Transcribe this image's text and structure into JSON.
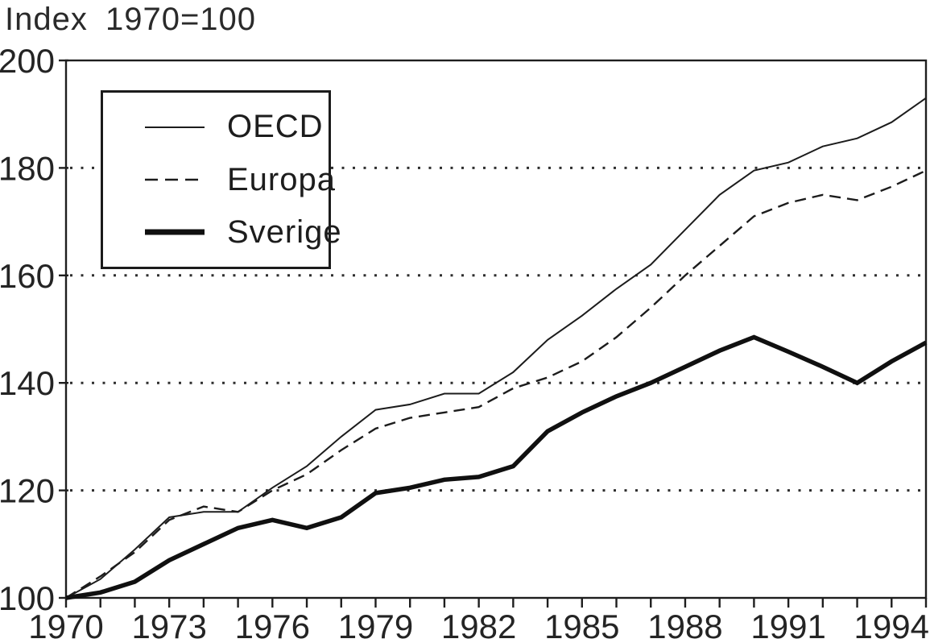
{
  "title": "Index 1970=100",
  "colors": {
    "line": "#1c1c1c",
    "axis": "#1e1e1e",
    "background": "#ffffff",
    "text": "#242424"
  },
  "legend": {
    "position": "upper-left-inside",
    "items": [
      {
        "label": "OECD",
        "style": "solid-thin"
      },
      {
        "label": "Europa",
        "style": "dashed"
      },
      {
        "label": "Sverige",
        "style": "solid-thick"
      }
    ]
  },
  "chart_data": {
    "type": "line",
    "title": "Index 1970=100",
    "xlabel": "",
    "ylabel": "Index 1970=100",
    "xlim": [
      1970,
      1995
    ],
    "ylim": [
      100,
      200
    ],
    "grid": "horizontal dotted",
    "grid_y": [
      120,
      140,
      160,
      180
    ],
    "y_ticks": [
      100,
      120,
      140,
      160,
      180,
      200
    ],
    "x_tick_interval": 1,
    "x_tick_labels": [
      "1970",
      "1973",
      "1976",
      "1979",
      "1982",
      "1985",
      "1988",
      "1991",
      "1994"
    ],
    "legend_position": "upper-left-inside",
    "x": [
      1970,
      1971,
      1972,
      1973,
      1974,
      1975,
      1976,
      1977,
      1978,
      1979,
      1980,
      1981,
      1982,
      1983,
      1984,
      1985,
      1986,
      1987,
      1988,
      1989,
      1990,
      1991,
      1992,
      1993,
      1994,
      1995
    ],
    "series": [
      {
        "name": "OECD",
        "style": "solid-thin",
        "values": [
          100,
          103.5,
          109,
          115,
          116,
          116,
          120.5,
          124.5,
          130,
          135,
          136,
          138,
          138,
          142,
          148,
          152.5,
          157.5,
          162,
          168.5,
          175,
          179.5,
          181,
          184,
          185.5,
          188.5,
          193
        ]
      },
      {
        "name": "Europa",
        "style": "dashed",
        "values": [
          100,
          104,
          108.5,
          114.5,
          117,
          116,
          120,
          123,
          127.5,
          131.5,
          133.5,
          134.5,
          135.5,
          139,
          141,
          144,
          148.5,
          154,
          160,
          165.5,
          171,
          173.5,
          175,
          174,
          176.5,
          179.5
        ]
      },
      {
        "name": "Sverige",
        "style": "solid-thick",
        "values": [
          100,
          101,
          103,
          107,
          110,
          113,
          114.5,
          113,
          115,
          119.5,
          120.5,
          122,
          122.5,
          124.5,
          131,
          134.5,
          137.5,
          140,
          143,
          146,
          148.5,
          145.8,
          143,
          140,
          144,
          147.5
        ]
      }
    ]
  }
}
